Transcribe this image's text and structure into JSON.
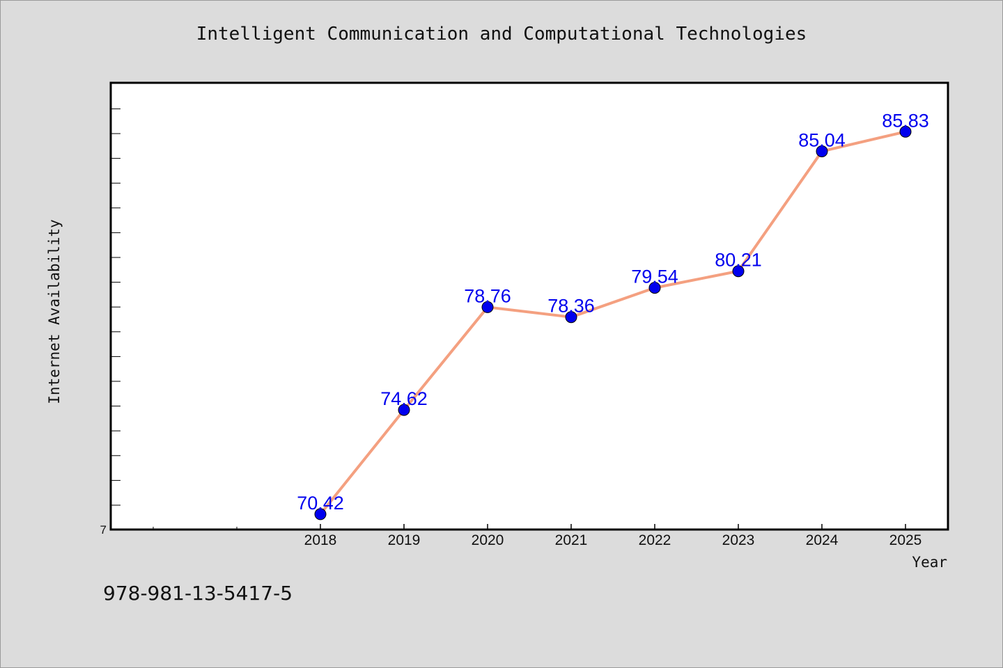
{
  "chart_data": {
    "type": "line",
    "title": "Intelligent Communication and Computational Technologies",
    "xlabel": "Year",
    "ylabel": "Internet Availability",
    "x": [
      "2018",
      "2019",
      "2020",
      "2021",
      "2022",
      "2023",
      "2024",
      "2025"
    ],
    "values": [
      70.42,
      74.62,
      78.76,
      78.36,
      79.54,
      80.21,
      85.04,
      85.83
    ],
    "data_labels": [
      "70.42",
      "74.62",
      "78.76",
      "78.36",
      "79.54",
      "80.21",
      "85.04",
      "85.83"
    ],
    "y_tick_label": "7",
    "ylim": [
      69.8,
      87.8
    ],
    "grid": false,
    "line_color": "#f4a080",
    "marker_color": "#0000ee",
    "label_color": "#0000ee"
  },
  "footer_text": "978-981-13-5417-5"
}
